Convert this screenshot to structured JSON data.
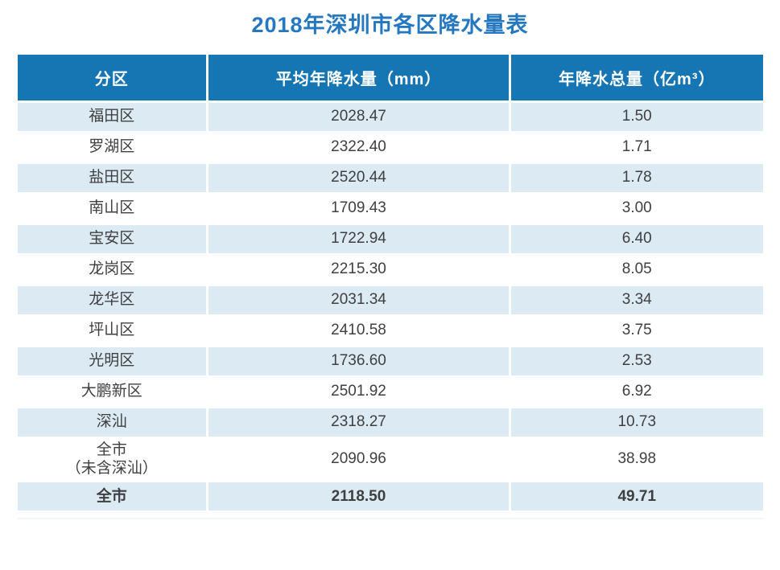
{
  "page": {
    "title": "2018年深圳市各区降水量表"
  },
  "colors": {
    "title_text": "#2578c0",
    "header_bg": "#1576b3",
    "header_text": "#ffffff",
    "row_alt_bg": "#dceaf4",
    "row_plain_bg": "#ffffff",
    "body_text": "#3f3f3f"
  },
  "chart_data": {
    "type": "table",
    "title": "2018年深圳市各区降水量表",
    "columns": [
      "分区",
      "平均年降水量（mm）",
      "年降水总量（亿m³）"
    ],
    "rows": [
      {
        "district": "福田区",
        "avg_mm": "2028.47",
        "volume": "1.50"
      },
      {
        "district": "罗湖区",
        "avg_mm": "2322.40",
        "volume": "1.71"
      },
      {
        "district": "盐田区",
        "avg_mm": "2520.44",
        "volume": "1.78"
      },
      {
        "district": "南山区",
        "avg_mm": "1709.43",
        "volume": "3.00"
      },
      {
        "district": "宝安区",
        "avg_mm": "1722.94",
        "volume": "6.40"
      },
      {
        "district": "龙岗区",
        "avg_mm": "2215.30",
        "volume": "8.05"
      },
      {
        "district": "龙华区",
        "avg_mm": "2031.34",
        "volume": "3.34"
      },
      {
        "district": "坪山区",
        "avg_mm": "2410.58",
        "volume": "3.75"
      },
      {
        "district": "光明区",
        "avg_mm": "1736.60",
        "volume": "2.53"
      },
      {
        "district": "大鹏新区",
        "avg_mm": "2501.92",
        "volume": "6.92"
      },
      {
        "district": "深汕",
        "avg_mm": "2318.27",
        "volume": "10.73"
      },
      {
        "district": "全市\n（未含深汕）",
        "avg_mm": "2090.96",
        "volume": "38.98"
      },
      {
        "district": "全市",
        "avg_mm": "2118.50",
        "volume": "49.71"
      }
    ],
    "layout": {
      "alternating_rows": true,
      "first_data_row_shaded": true,
      "bold_last_row": true
    }
  }
}
